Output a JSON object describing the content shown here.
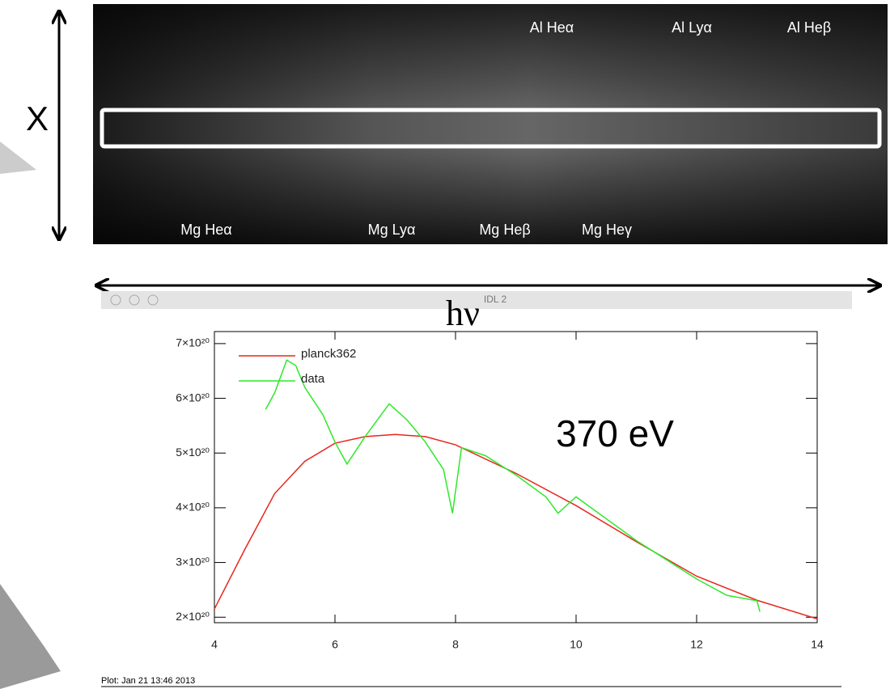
{
  "figure": {
    "axis_label_vertical": "X",
    "axis_label_horizontal": "hν",
    "image_labels": [
      "Al Heα",
      "Al Lyα",
      "Al Heβ",
      "Mg Heα",
      "Mg Lyα",
      "Mg Heβ",
      "Mg Heγ"
    ],
    "window_title": "IDL 2",
    "footer": "Plot: Jan 21 13:46 2013"
  },
  "chart_data": {
    "type": "line",
    "annotation": "370 eV",
    "xlim": [
      4,
      14
    ],
    "xticks": [
      4,
      6,
      8,
      10,
      12,
      14
    ],
    "ylim": [
      1.9e+20,
      7.22e+20
    ],
    "yticks": [
      {
        "value": 2e+20,
        "label": "2×10²⁰"
      },
      {
        "value": 3e+20,
        "label": "3×10²⁰"
      },
      {
        "value": 4e+20,
        "label": "4×10²⁰"
      },
      {
        "value": 5e+20,
        "label": "5×10²⁰"
      },
      {
        "value": 6e+20,
        "label": "6×10²⁰"
      },
      {
        "value": 7e+20,
        "label": "7×10²⁰"
      }
    ],
    "grid": false,
    "legend": "upper left",
    "series": [
      {
        "name": "planck362",
        "color": "#e8261c",
        "x": [
          4,
          4.5,
          5,
          5.5,
          6,
          6.5,
          7,
          7.5,
          8,
          9,
          10,
          11,
          12,
          13,
          14
        ],
        "values": [
          2.15e+20,
          3.23e+20,
          4.26e+20,
          4.85e+20,
          5.18e+20,
          5.3e+20,
          5.34e+20,
          5.3e+20,
          5.15e+20,
          4.63e+20,
          4.04e+20,
          3.38e+20,
          2.75e+20,
          2.31e+20,
          1.97e+20
        ]
      },
      {
        "name": "data",
        "color": "#2ee82a",
        "x": [
          4.85,
          5.0,
          5.2,
          5.35,
          5.5,
          5.8,
          6.0,
          6.2,
          6.5,
          6.9,
          7.2,
          7.5,
          7.8,
          7.95,
          8.1,
          8.5,
          9.0,
          9.5,
          9.7,
          10.0,
          10.5,
          11.0,
          11.5,
          12.0,
          12.5,
          13.0,
          13.05
        ],
        "values": [
          5.8e+20,
          6.1e+20,
          6.7e+20,
          6.6e+20,
          6.2e+20,
          5.7e+20,
          5.2e+20,
          4.8e+20,
          5.3e+20,
          5.9e+20,
          5.6e+20,
          5.2e+20,
          4.7e+20,
          3.9e+20,
          5.1e+20,
          4.95e+20,
          4.6e+20,
          4.2e+20,
          3.9e+20,
          4.2e+20,
          3.8e+20,
          3.4e+20,
          3.05e+20,
          2.7e+20,
          2.4e+20,
          2.3e+20,
          2.1e+20
        ]
      }
    ]
  }
}
